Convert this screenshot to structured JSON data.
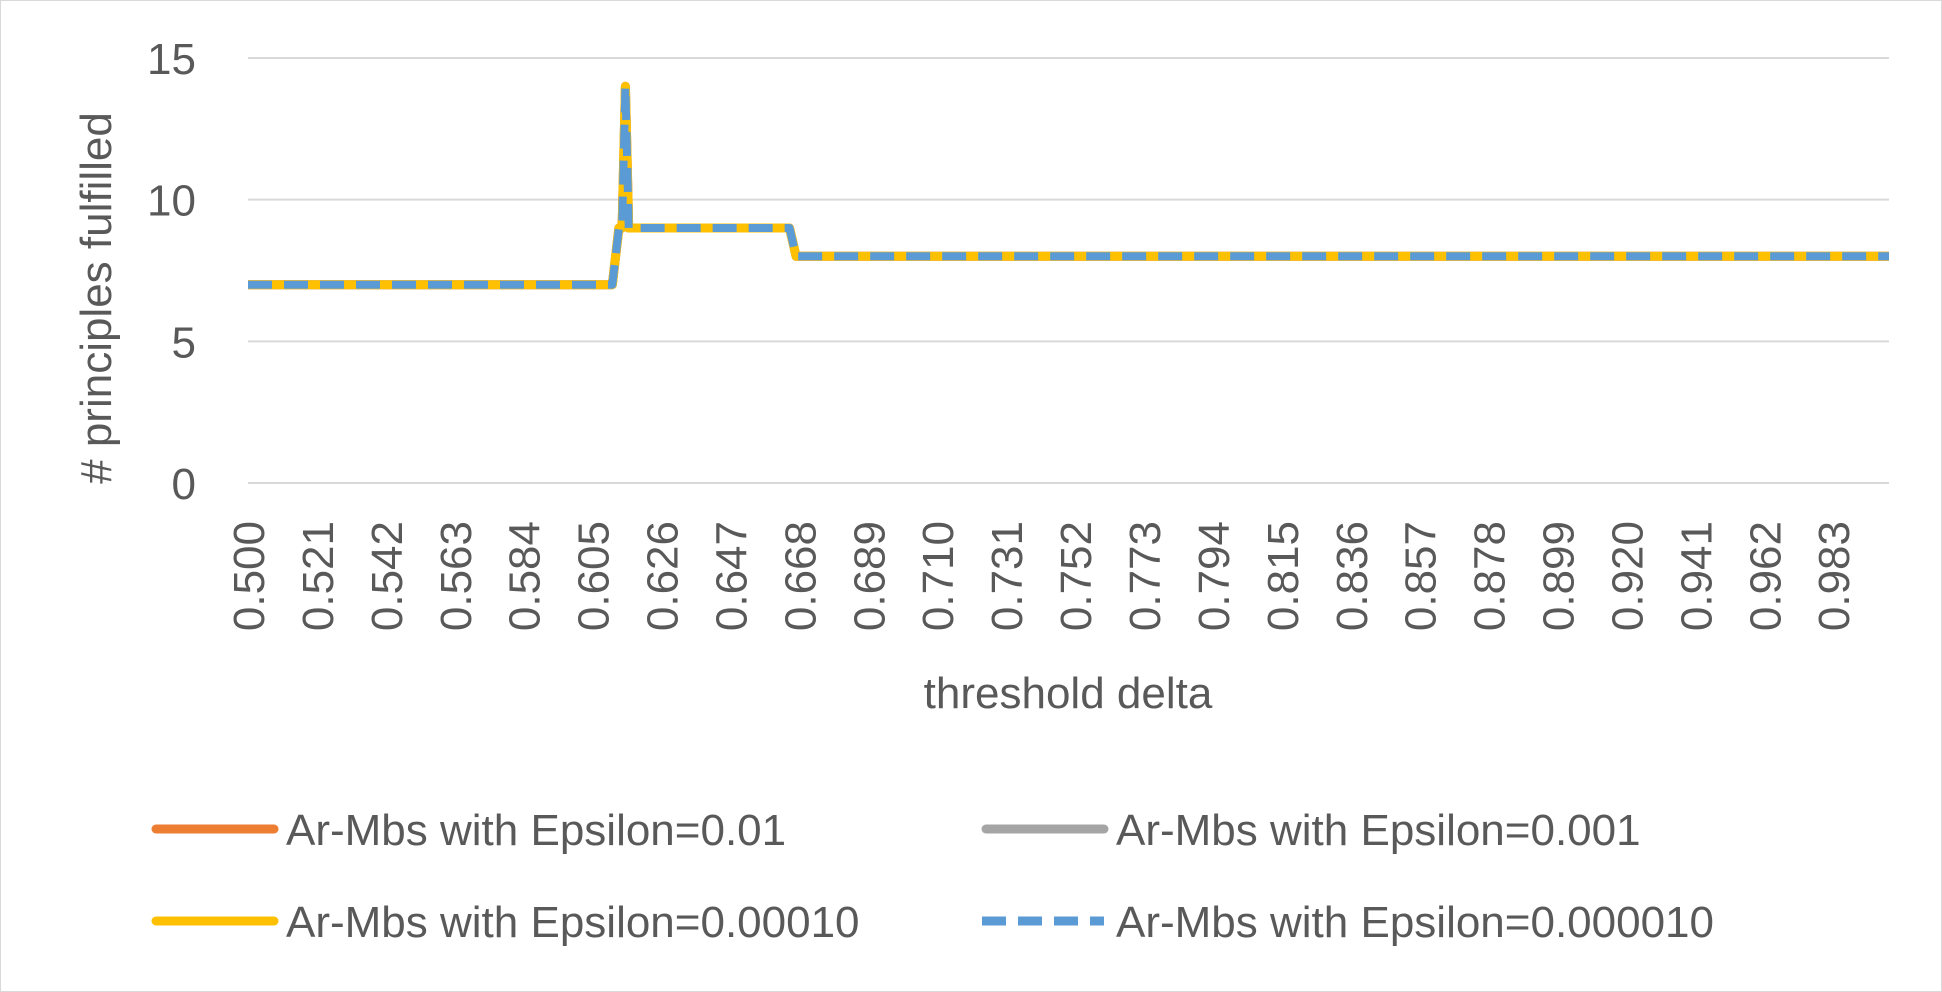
{
  "chart_data": {
    "type": "line",
    "title": "",
    "xlabel": "threshold delta",
    "ylabel": "# principles fulfilled",
    "ylim": [
      0,
      15
    ],
    "yticks": [
      0,
      5,
      10,
      15
    ],
    "xlim": [
      0.5,
      1.0
    ],
    "xticks": [
      "0.500",
      "0.521",
      "0.542",
      "0.563",
      "0.584",
      "0.605",
      "0.626",
      "0.647",
      "0.668",
      "0.689",
      "0.710",
      "0.731",
      "0.752",
      "0.773",
      "0.794",
      "0.815",
      "0.836",
      "0.857",
      "0.878",
      "0.899",
      "0.920",
      "0.941",
      "0.962",
      "0.983"
    ],
    "grid": true,
    "legend_position": "bottom",
    "series": [
      {
        "name": "Ar-Mbs with Epsilon=0.01",
        "color": "#ED7D31",
        "dash": "solid",
        "x": [
          0.5,
          0.611,
          0.613,
          0.614,
          0.615,
          0.616,
          0.665,
          0.667,
          1.0
        ],
        "values": [
          7,
          7,
          9,
          9,
          14,
          9,
          9,
          8,
          8
        ]
      },
      {
        "name": "Ar-Mbs with Epsilon=0.001",
        "color": "#A5A5A5",
        "dash": "solid",
        "x": [
          0.5,
          0.611,
          0.613,
          0.614,
          0.615,
          0.616,
          0.665,
          0.667,
          1.0
        ],
        "values": [
          7,
          7,
          9,
          9,
          14,
          9,
          9,
          8,
          8
        ]
      },
      {
        "name": "Ar-Mbs with Epsilon=0.00010",
        "color": "#FFC000",
        "dash": "solid",
        "x": [
          0.5,
          0.611,
          0.613,
          0.614,
          0.615,
          0.616,
          0.665,
          0.667,
          1.0
        ],
        "values": [
          7,
          7,
          9,
          9,
          14,
          9,
          9,
          8,
          8
        ]
      },
      {
        "name": "Ar-Mbs with Epsilon=0.000010",
        "color": "#5B9BD5",
        "dash": "dashed",
        "x": [
          0.5,
          0.611,
          0.613,
          0.614,
          0.615,
          0.616,
          0.665,
          0.667,
          1.0
        ],
        "values": [
          7,
          7,
          9,
          9,
          14,
          9,
          9,
          8,
          8
        ]
      }
    ]
  }
}
